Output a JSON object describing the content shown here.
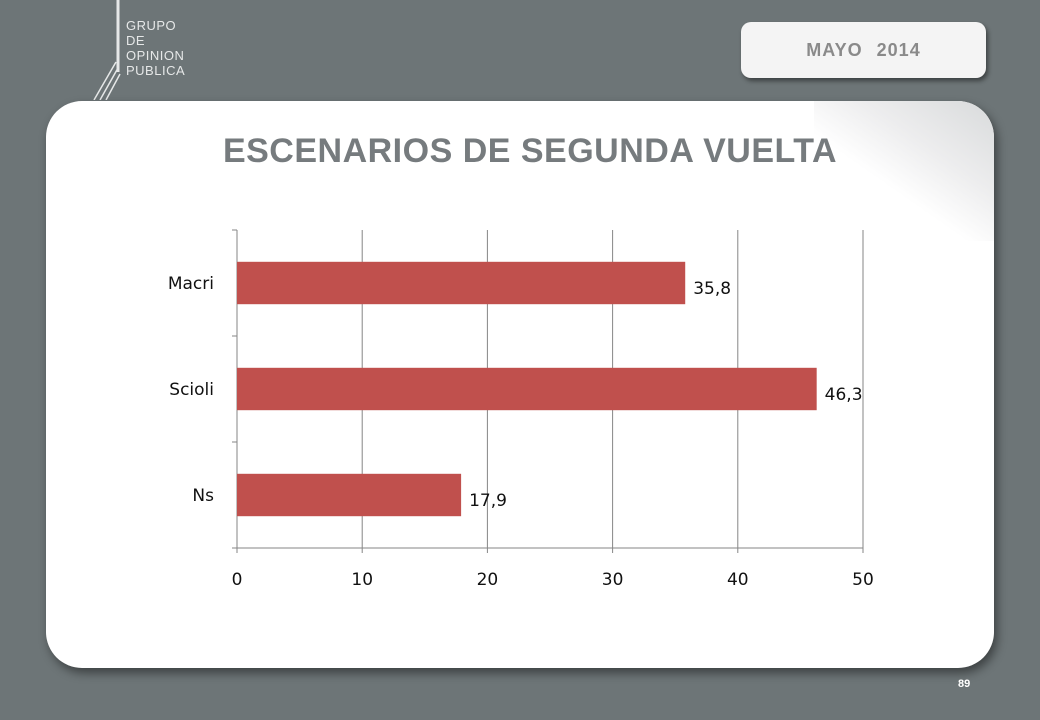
{
  "logo": {
    "lines": [
      "GRUPO",
      "DE",
      "OPINION",
      "PUBLICA"
    ]
  },
  "header": {
    "month": "MAYO",
    "year": "2014"
  },
  "page": {
    "title": "ESCENARIOS DE SEGUNDA VUELTA",
    "number": "89"
  },
  "colors": {
    "background": "#6d7577",
    "bar": "#c0504d",
    "title": "#767b7e",
    "grid": "#868686"
  },
  "chart_data": {
    "type": "bar",
    "orientation": "horizontal",
    "categories": [
      "Macri",
      "Scioli",
      "Ns"
    ],
    "values": [
      35.8,
      46.3,
      17.9
    ],
    "data_labels": [
      "35,8",
      "46,3",
      "17,9"
    ],
    "xlim": [
      0,
      50
    ],
    "xticks": [
      0,
      10,
      20,
      30,
      40,
      50
    ],
    "grid": "vertical",
    "legend": "none"
  }
}
